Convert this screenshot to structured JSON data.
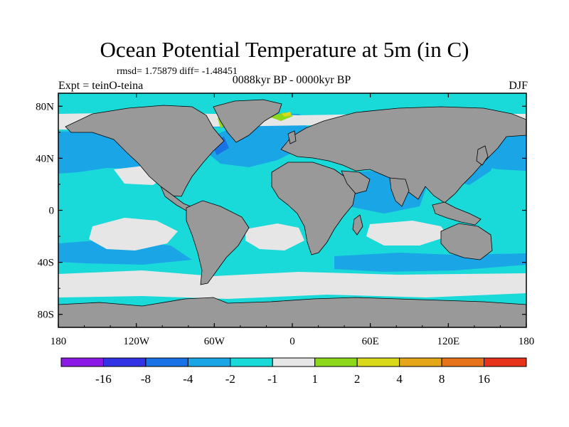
{
  "title": "Ocean Potential Temperature at 5m (in C)",
  "stats": "rmsd= 1.75879 diff= -1.48451",
  "period": "0088kyr BP - 0000kyr BP",
  "experiment": "Expt = teinO-teina",
  "season": "DJF",
  "colors": {
    "land": "#999999",
    "sea_near_zero": "#e6e6e6",
    "cyan": "#1ad9d9",
    "light_blue": "#1aa6e6",
    "mid_blue": "#1a73e6",
    "dark_blue": "#3333e6",
    "violet": "#8c1ae6",
    "green": "#8cd91a",
    "yellow": "#d9d91a",
    "orange_light": "#e6a61a",
    "orange": "#e6731a",
    "red": "#e6331a"
  },
  "chart_data": {
    "type": "heatmap",
    "projection": "cylindrical-equidistant",
    "lon_range": [
      -180,
      180
    ],
    "lat_range": [
      -90,
      90
    ],
    "lat_ticks": [
      {
        "value": 80,
        "label": "80N"
      },
      {
        "value": 40,
        "label": "40N"
      },
      {
        "value": 0,
        "label": "0"
      },
      {
        "value": -40,
        "label": "40S"
      },
      {
        "value": -80,
        "label": "80S"
      }
    ],
    "lon_ticks": [
      {
        "value": -180,
        "label": "180"
      },
      {
        "value": -120,
        "label": "120W"
      },
      {
        "value": -60,
        "label": "60W"
      },
      {
        "value": 0,
        "label": "0"
      },
      {
        "value": 60,
        "label": "60E"
      },
      {
        "value": 120,
        "label": "120E"
      },
      {
        "value": 180,
        "label": "180"
      }
    ],
    "colorbar": {
      "boundaries": [
        -16,
        -8,
        -4,
        -2,
        -1,
        1,
        2,
        4,
        8,
        16
      ],
      "labels": [
        "-16",
        "-8",
        "-4",
        "-2",
        "-1",
        "1",
        "2",
        "4",
        "8",
        "16"
      ],
      "colors": [
        "#8c1ae6",
        "#3333e6",
        "#1a73e6",
        "#1aa6e6",
        "#1ad9d9",
        "#e6e6e6",
        "#8cd91a",
        "#d9d91a",
        "#e6a61a",
        "#e6731a",
        "#e6331a"
      ]
    }
  }
}
